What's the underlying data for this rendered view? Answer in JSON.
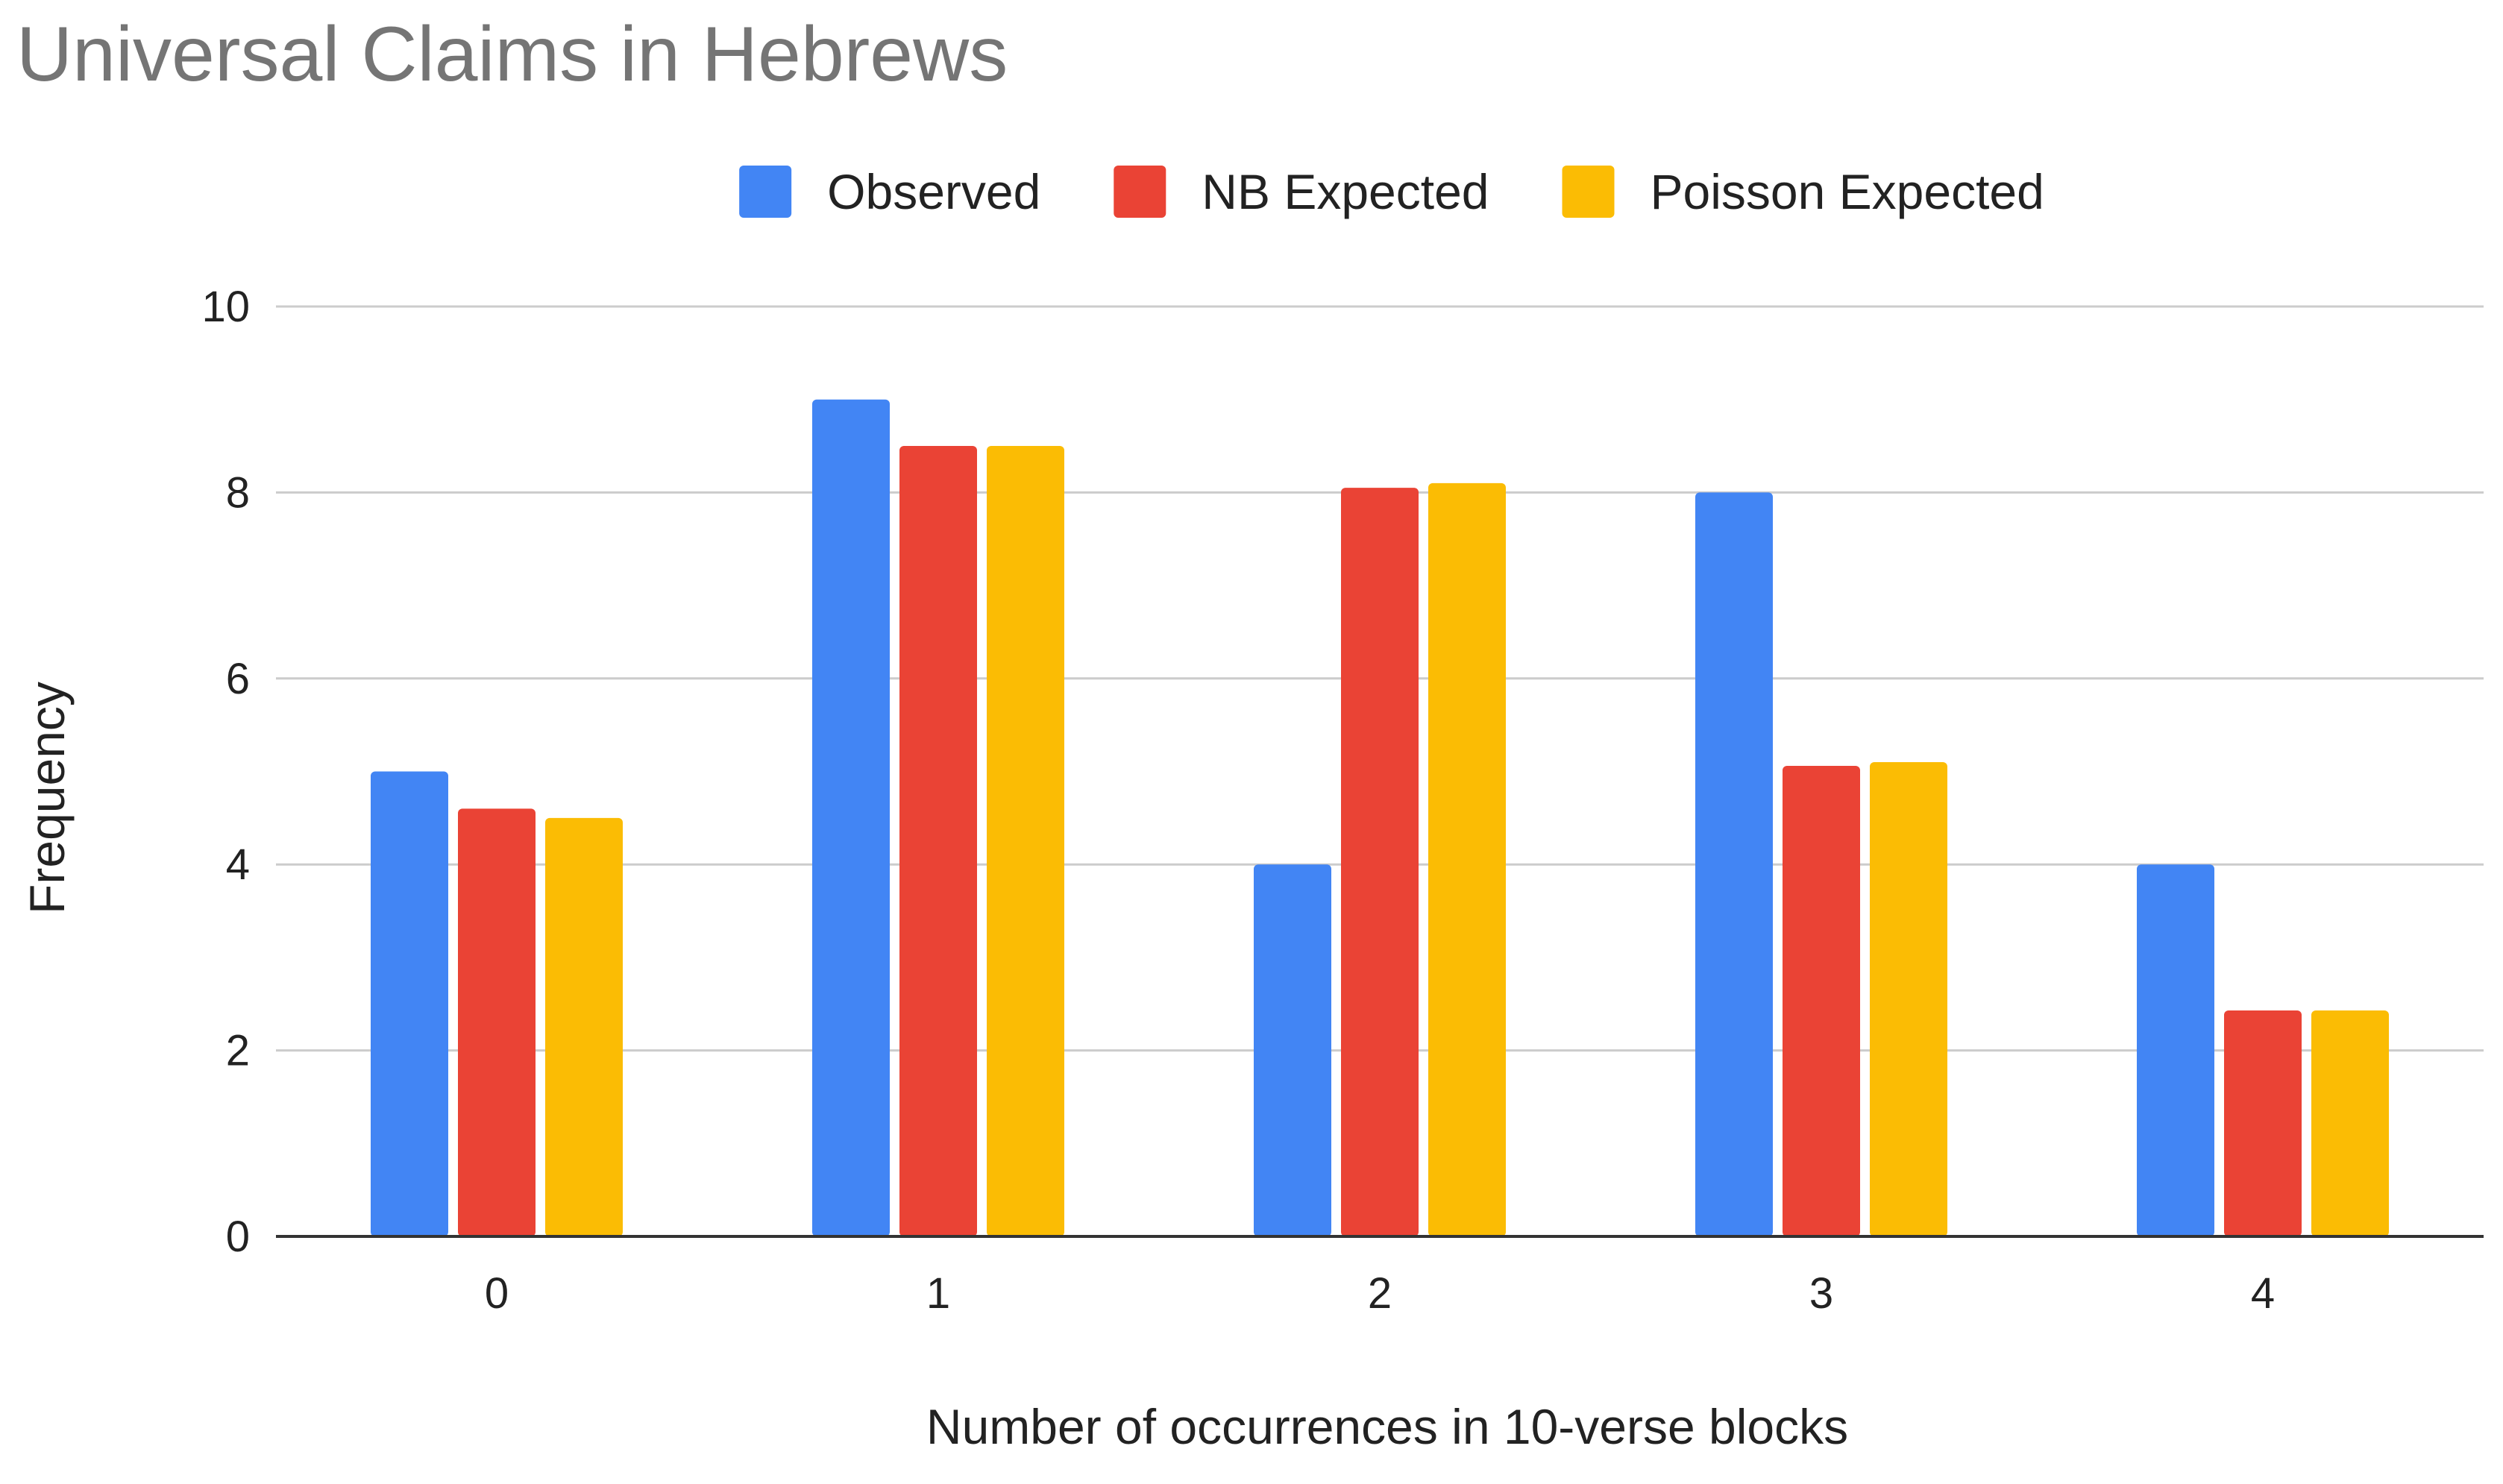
{
  "chart_data": {
    "type": "bar",
    "title": "Universal Claims in Hebrews",
    "xlabel": "Number of occurrences in 10-verse blocks",
    "ylabel": "Frequency",
    "categories": [
      "0",
      "1",
      "2",
      "3",
      "4"
    ],
    "series": [
      {
        "name": "Observed",
        "color": "#4285f4",
        "values": [
          5,
          9,
          4,
          8,
          4
        ]
      },
      {
        "name": "NB Expected",
        "color": "#ea4335",
        "values": [
          4.6,
          8.5,
          8.05,
          5.06,
          2.43
        ]
      },
      {
        "name": "Poisson Expected",
        "color": "#fbbc04",
        "values": [
          4.5,
          8.5,
          8.1,
          5.1,
          2.43
        ]
      }
    ],
    "ylim": [
      0,
      10
    ],
    "yticks": [
      0,
      2,
      4,
      6,
      8,
      10
    ],
    "grid": true,
    "legend_position": "top-center"
  }
}
